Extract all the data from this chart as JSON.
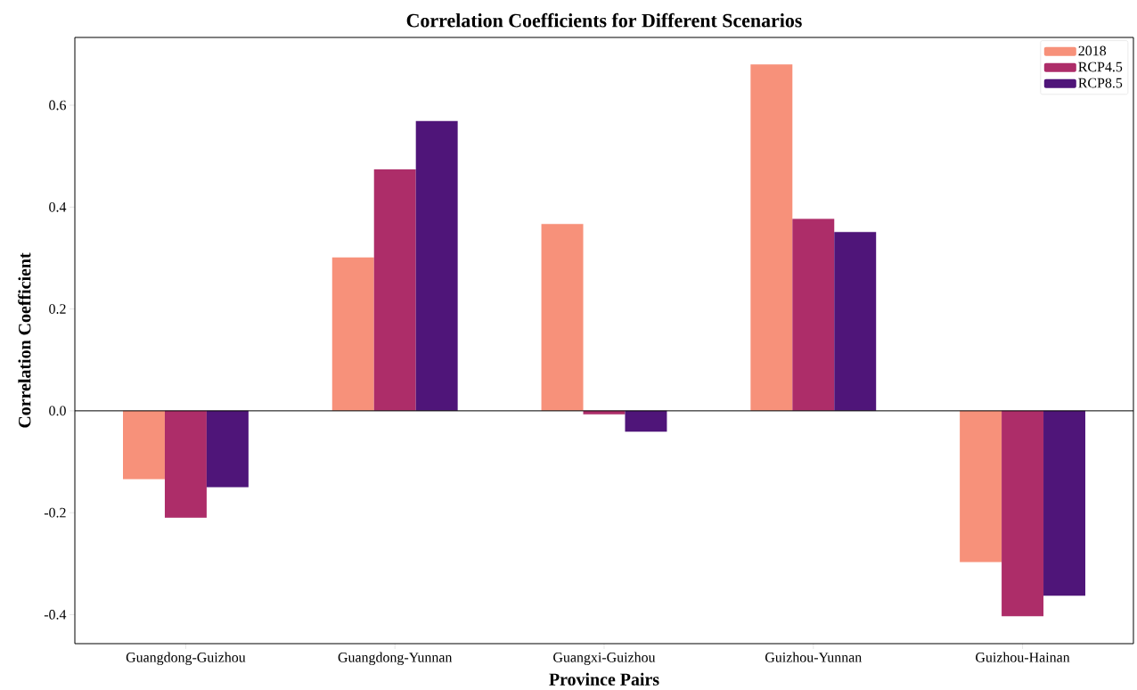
{
  "chart_data": {
    "type": "bar",
    "title": "Correlation Coefficients for Different Scenarios",
    "xlabel": "Province Pairs",
    "ylabel": "Correlation Coefficient",
    "categories": [
      "Guangdong-Guizhou",
      "Guangdong-Yunnan",
      "Guangxi-Guizhou",
      "Guizhou-Yunnan",
      "Guizhou-Hainan"
    ],
    "series": [
      {
        "name": "2018",
        "color": "#f7917a",
        "values": [
          -0.134,
          0.301,
          0.367,
          0.68,
          -0.297
        ]
      },
      {
        "name": "RCP4.5",
        "color": "#ad2d69",
        "values": [
          -0.21,
          0.474,
          -0.007,
          0.377,
          -0.403
        ]
      },
      {
        "name": "RCP8.5",
        "color": "#4f1579",
        "values": [
          -0.15,
          0.569,
          -0.041,
          0.351,
          -0.363
        ]
      }
    ],
    "ylim": [
      -0.457,
      0.733
    ],
    "yticks": [
      -0.4,
      -0.2,
      {
        "value": 0,
        "label": "0.0"
      },
      0.2,
      0.4,
      0.6
    ],
    "ref_lines": [
      {
        "axis": "y",
        "value": 0
      }
    ],
    "legend": "top right",
    "grid": false
  }
}
